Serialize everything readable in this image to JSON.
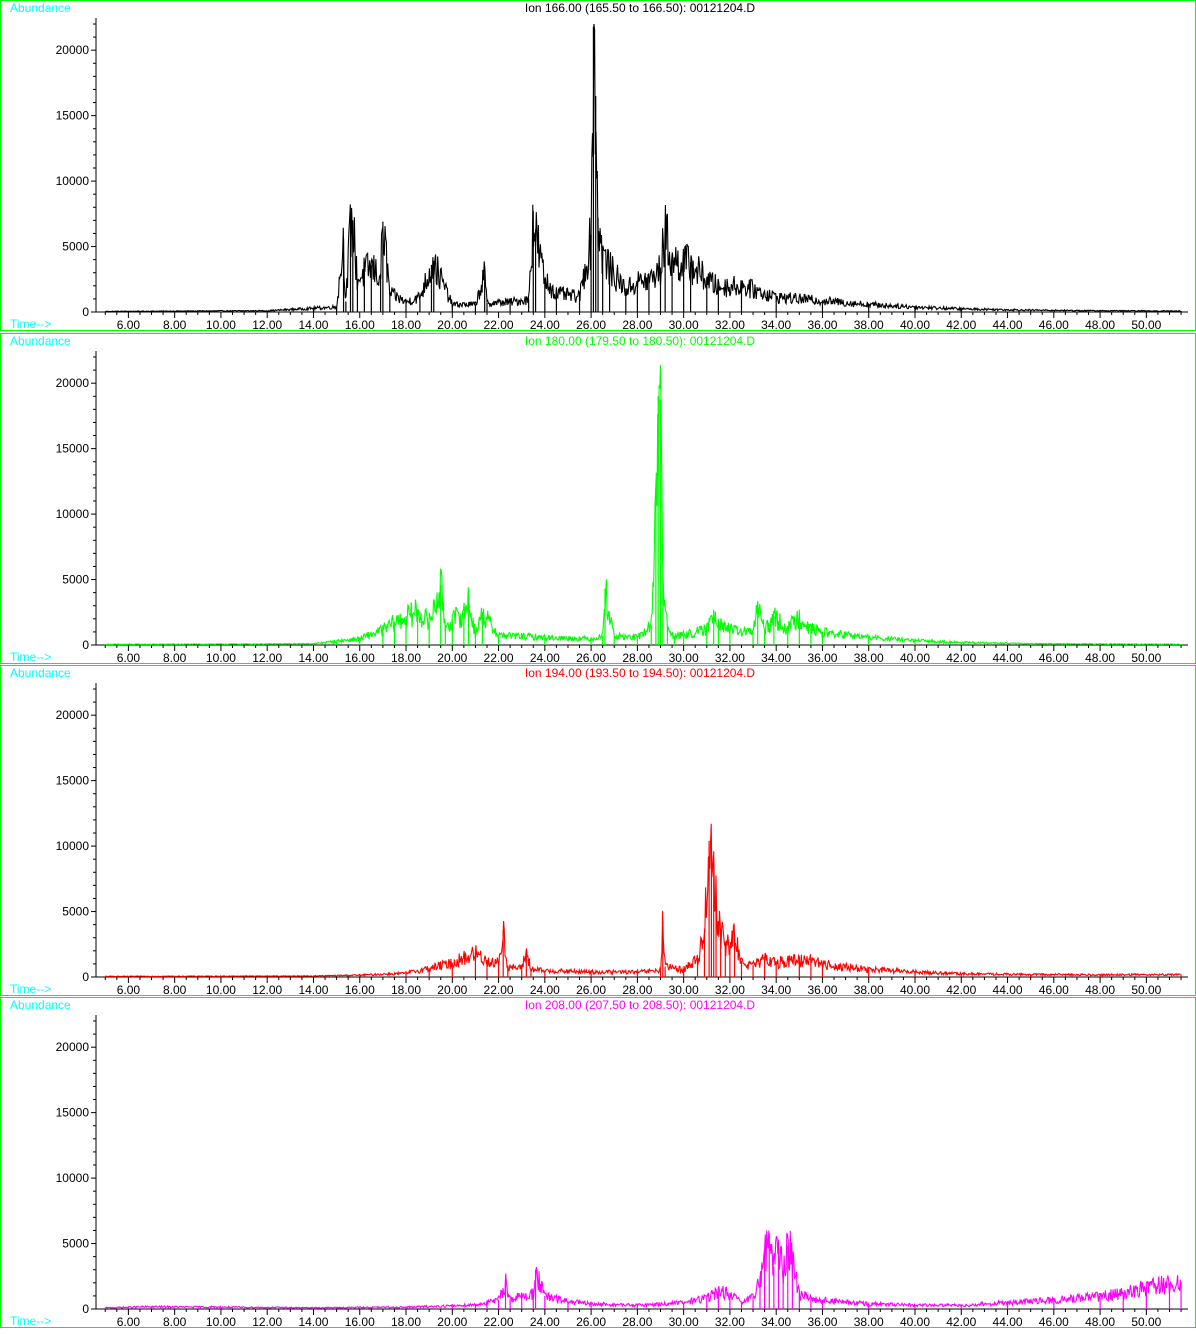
{
  "colors": {
    "frame": "#00ff00",
    "label": "#00ffff",
    "axis": "#000000"
  },
  "chart_data": [
    {
      "type": "line",
      "title": "Ion 166.00 (165.50 to 166.50): 00121204.D",
      "ylabel": "Abundance",
      "xlabel": "Time-->",
      "color": "#000000",
      "xlim": [
        4.6,
        51.8
      ],
      "ylim": [
        0,
        22000
      ],
      "xticks": [
        "6.00",
        "8.00",
        "10.00",
        "12.00",
        "14.00",
        "16.00",
        "18.00",
        "20.00",
        "22.00",
        "24.00",
        "26.00",
        "28.00",
        "30.00",
        "32.00",
        "34.00",
        "36.00",
        "38.00",
        "40.00",
        "42.00",
        "44.00",
        "46.00",
        "48.00",
        "50.00"
      ],
      "yticks": [
        "0",
        "5000",
        "10000",
        "15000",
        "20000"
      ],
      "series": [
        {
          "x": [
            5,
            12,
            14,
            15.0,
            15.3,
            15.4,
            15.6,
            15.7,
            15.9,
            16.2,
            16.5,
            16.9,
            17.0,
            17.3,
            18.0,
            18.6,
            19.1,
            19.2,
            20.0,
            21.0,
            21.4,
            21.5,
            22.5,
            23.3,
            23.5,
            23.6,
            24.0,
            24.5,
            25.5,
            26.0,
            26.1,
            26.2,
            26.3,
            26.5,
            26.8,
            27.5,
            28.0,
            28.5,
            29.0,
            29.2,
            29.5,
            30.0,
            30.3,
            31.0,
            31.5,
            32.5,
            34.0,
            36.0,
            38.0,
            40.0,
            42.0,
            45.0,
            48.0,
            51.5
          ],
          "y": [
            50,
            100,
            300,
            400,
            5600,
            800,
            6800,
            7000,
            2500,
            3200,
            3600,
            2800,
            6900,
            1500,
            800,
            1200,
            3600,
            3900,
            600,
            600,
            3000,
            700,
            800,
            1000,
            7700,
            6300,
            2500,
            1500,
            1200,
            5900,
            21800,
            16500,
            7200,
            4600,
            3500,
            1800,
            2400,
            2500,
            3400,
            6500,
            4000,
            4000,
            3800,
            2600,
            2000,
            2100,
            1200,
            900,
            600,
            400,
            250,
            150,
            100,
            80
          ]
        }
      ]
    },
    {
      "type": "line",
      "title": "Ion 180.00 (179.50 to 180.50): 00121204.D",
      "ylabel": "Abundance",
      "xlabel": "Time-->",
      "color": "#00ff00",
      "xlim": [
        4.6,
        51.8
      ],
      "ylim": [
        0,
        22000
      ],
      "xticks": [
        "6.00",
        "8.00",
        "10.00",
        "12.00",
        "14.00",
        "16.00",
        "18.00",
        "20.00",
        "22.00",
        "24.00",
        "26.00",
        "28.00",
        "30.00",
        "32.00",
        "34.00",
        "36.00",
        "38.00",
        "40.00",
        "42.00",
        "44.00",
        "46.00",
        "48.00",
        "50.00"
      ],
      "yticks": [
        "0",
        "5000",
        "10000",
        "15000",
        "20000"
      ],
      "series": [
        {
          "x": [
            5,
            12,
            14,
            15.0,
            16.0,
            17.0,
            17.5,
            18.0,
            18.5,
            19.0,
            19.5,
            19.7,
            20.0,
            20.5,
            20.7,
            21.0,
            21.3,
            22.0,
            24.0,
            26.0,
            26.5,
            26.6,
            27.0,
            28.0,
            28.6,
            28.8,
            28.9,
            29.0,
            29.1,
            29.3,
            29.6,
            30.0,
            31.0,
            31.3,
            31.5,
            32.0,
            33.0,
            33.2,
            33.5,
            33.9,
            34.5,
            35.0,
            35.5,
            36.0,
            38.0,
            40.0,
            42.0,
            45.0,
            48.0,
            51.5
          ],
          "y": [
            50,
            80,
            100,
            300,
            500,
            1200,
            1800,
            2200,
            2700,
            1800,
            4600,
            1500,
            2000,
            2500,
            3600,
            900,
            2500,
            800,
            600,
            500,
            700,
            4300,
            700,
            600,
            1500,
            12000,
            19000,
            18700,
            5600,
            1200,
            700,
            800,
            1200,
            2700,
            2000,
            1200,
            1000,
            3200,
            1100,
            2200,
            1300,
            2300,
            1300,
            1000,
            600,
            350,
            200,
            100,
            80,
            60
          ]
        }
      ]
    },
    {
      "type": "line",
      "title": "Ion 194.00 (193.50 to 194.50): 00121204.D",
      "ylabel": "Abundance",
      "xlabel": "Time-->",
      "color": "#ff0000",
      "xlim": [
        4.6,
        51.8
      ],
      "ylim": [
        0,
        22000
      ],
      "xticks": [
        "6.00",
        "8.00",
        "10.00",
        "12.00",
        "14.00",
        "16.00",
        "18.00",
        "20.00",
        "22.00",
        "24.00",
        "26.00",
        "28.00",
        "30.00",
        "32.00",
        "34.00",
        "36.00",
        "38.00",
        "40.00",
        "42.00",
        "44.00",
        "46.00",
        "48.00",
        "50.00"
      ],
      "yticks": [
        "0",
        "5000",
        "10000",
        "15000",
        "20000"
      ],
      "series": [
        {
          "x": [
            5,
            14,
            16,
            18.0,
            19.0,
            20.0,
            21.0,
            21.5,
            22.0,
            22.2,
            22.4,
            23.0,
            23.2,
            23.4,
            24.0,
            26.0,
            28.0,
            29.0,
            29.1,
            29.2,
            30.0,
            30.6,
            30.9,
            31.1,
            31.2,
            31.3,
            31.4,
            31.6,
            31.8,
            32.0,
            32.2,
            32.5,
            33.0,
            33.5,
            34.0,
            35.0,
            35.5,
            36.0,
            38.0,
            40.0,
            42.0,
            45.0,
            48.0,
            51.5
          ],
          "y": [
            50,
            80,
            150,
            300,
            700,
            1100,
            1900,
            1300,
            1100,
            3600,
            800,
            700,
            2100,
            600,
            500,
            400,
            400,
            500,
            4300,
            800,
            600,
            1400,
            3700,
            10400,
            10500,
            9600,
            5800,
            3700,
            2700,
            2400,
            3200,
            1200,
            900,
            1400,
            1200,
            1300,
            1500,
            1000,
            600,
            400,
            250,
            200,
            180,
            200
          ]
        }
      ]
    },
    {
      "type": "line",
      "title": "Ion 208.00 (207.50 to 208.50): 00121204.D",
      "ylabel": "Abundance",
      "xlabel": "Time-->",
      "color": "#ff00ff",
      "xlim": [
        4.6,
        51.8
      ],
      "ylim": [
        0,
        22000
      ],
      "xticks": [
        "6.00",
        "8.00",
        "10.00",
        "12.00",
        "14.00",
        "16.00",
        "18.00",
        "20.00",
        "22.00",
        "24.00",
        "26.00",
        "28.00",
        "30.00",
        "32.00",
        "34.00",
        "36.00",
        "38.00",
        "40.00",
        "42.00",
        "44.00",
        "46.00",
        "48.00",
        "50.00"
      ],
      "yticks": [
        "0",
        "5000",
        "10000",
        "15000",
        "20000"
      ],
      "series": [
        {
          "x": [
            5,
            7,
            10,
            14,
            18,
            20,
            21.0,
            21.5,
            22.0,
            22.3,
            22.5,
            23.0,
            23.5,
            23.6,
            24.0,
            25.0,
            26.0,
            28.0,
            30.0,
            31.0,
            31.5,
            32.0,
            32.5,
            33.0,
            33.3,
            33.5,
            33.7,
            33.9,
            34.1,
            34.3,
            34.5,
            34.7,
            35.0,
            35.5,
            36.0,
            38.0,
            40.0,
            42.0,
            44.0,
            46.0,
            48.0,
            49.0,
            50.0,
            51.0,
            51.5
          ],
          "y": [
            100,
            180,
            150,
            100,
            150,
            250,
            350,
            500,
            700,
            2200,
            800,
            1000,
            1200,
            3000,
            1000,
            600,
            400,
            300,
            500,
            900,
            1400,
            1200,
            500,
            900,
            2500,
            4500,
            5800,
            3200,
            5300,
            2900,
            4800,
            4200,
            1200,
            900,
            700,
            400,
            300,
            300,
            500,
            700,
            1000,
            1300,
            1700,
            2000,
            2100
          ]
        }
      ]
    }
  ]
}
